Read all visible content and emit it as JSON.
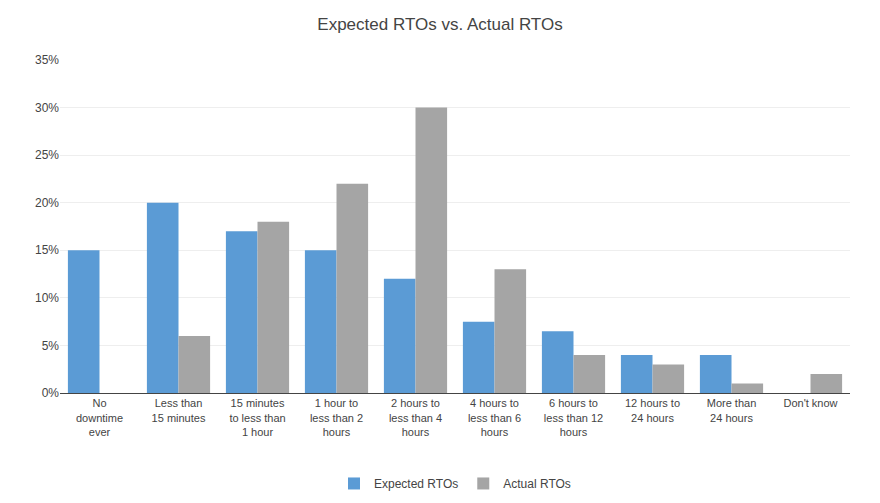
{
  "chart_data": {
    "type": "bar",
    "title": "Expected RTOs vs. Actual RTOs",
    "categories": [
      "No\ndowntime\never",
      "Less than\n15 minutes",
      "15 minutes\nto less than\n1 hour",
      "1 hour to\nless than 2\nhours",
      "2 hours to\nless than 4\nhours",
      "4 hours to\nless than 6\nhours",
      "6 hours to\nless than 12\nhours",
      "12 hours to\n24 hours",
      "More than\n24 hours",
      "Don't know"
    ],
    "series": [
      {
        "name": "Expected RTOs",
        "color": "#5B9BD5",
        "values": [
          15,
          20,
          17,
          15,
          12,
          7.5,
          6.5,
          4,
          4,
          0
        ]
      },
      {
        "name": "Actual RTOs",
        "color": "#A5A5A5",
        "values": [
          0,
          6,
          18,
          22,
          30,
          13,
          4,
          3,
          1,
          2
        ]
      }
    ],
    "ylim": [
      0,
      35
    ],
    "yticks": [
      {
        "value": 0,
        "label": "0%"
      },
      {
        "value": 5,
        "label": "5%"
      },
      {
        "value": 10,
        "label": "10%"
      },
      {
        "value": 15,
        "label": "15%"
      },
      {
        "value": 20,
        "label": "20%"
      },
      {
        "value": 25,
        "label": "25%"
      },
      {
        "value": 30,
        "label": "30%"
      },
      {
        "value": 35,
        "label": "35%"
      }
    ],
    "grid": true,
    "legend": "bottom"
  }
}
